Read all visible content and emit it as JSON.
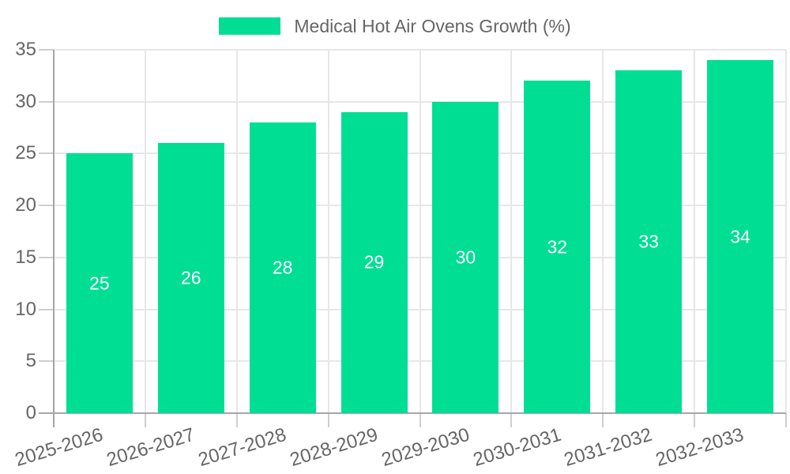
{
  "legend": {
    "label": "Medical Hot Air Ovens Growth (%)"
  },
  "chart_data": {
    "type": "bar",
    "title": "Medical Hot Air Ovens Growth (%)",
    "categories": [
      "2025-2026",
      "2026-2027",
      "2027-2028",
      "2028-2029",
      "2029-2030",
      "2030-2031",
      "2031-2032",
      "2032-2033"
    ],
    "values": [
      25,
      26,
      28,
      29,
      30,
      32,
      33,
      34
    ],
    "xlabel": "",
    "ylabel": "",
    "ylim": [
      0,
      35
    ],
    "yticks": [
      0,
      5,
      10,
      15,
      20,
      25,
      30,
      35
    ],
    "grid": true,
    "legend_position": "top",
    "bar_labels_position": "center",
    "x_label_rotation_deg": -17
  },
  "colors": {
    "bar": "#00DE94",
    "axis_text": "#666666",
    "grid_line": "#e7e7e7",
    "tick_line": "#cfcfcf",
    "axis_line": "#a6a6a6",
    "value_label": "#ffffff",
    "background": "#ffffff"
  }
}
